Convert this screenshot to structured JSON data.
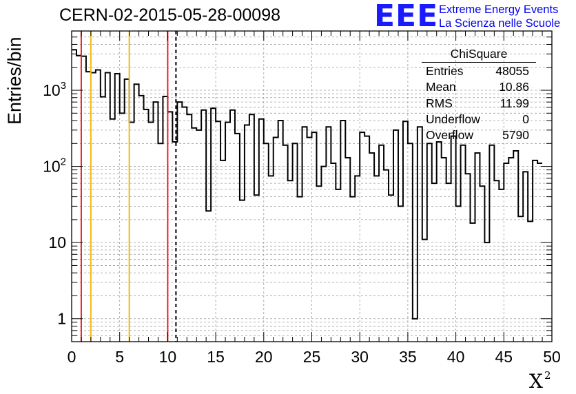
{
  "header": {
    "title": "CERN-02-2015-05-28-00098",
    "logo_mark": "EEE",
    "logo_line1": "Extreme Energy Events",
    "logo_line2": "La Scienza nelle Scuole"
  },
  "stats": {
    "name": "ChiSquare",
    "rows": [
      {
        "label": "Entries",
        "value": "48055"
      },
      {
        "label": "Mean",
        "value": "10.86"
      },
      {
        "label": "RMS",
        "value": "11.99"
      },
      {
        "label": "Underflow",
        "value": "0"
      },
      {
        "label": "Overflow",
        "value": "5790"
      }
    ]
  },
  "chart_data": {
    "type": "histogram",
    "title": "CERN-02-2015-05-28-00098",
    "xlabel": "X",
    "xlabel_superscript": "2",
    "ylabel": "Entries/bin",
    "xlim": [
      0,
      50
    ],
    "ylim": [
      0.5,
      6000
    ],
    "yscale": "log",
    "bin_width": 0.5,
    "grid": true,
    "x_ticks": [
      0,
      5,
      10,
      15,
      20,
      25,
      30,
      35,
      40,
      45,
      50
    ],
    "x_tick_labels": [
      "0",
      "5",
      "10",
      "15",
      "20",
      "25",
      "30",
      "35",
      "40",
      "45",
      "50"
    ],
    "y_ticks": [
      1,
      10,
      100,
      1000
    ],
    "y_tick_labels": [
      "1",
      "10",
      "10²",
      "10³"
    ],
    "values": [
      3400,
      2850,
      2800,
      1750,
      1700,
      1850,
      820,
      1700,
      420,
      1650,
      500,
      1400,
      380,
      1200,
      850,
      560,
      380,
      700,
      200,
      830,
      520,
      210,
      700,
      600,
      480,
      320,
      300,
      550,
      26,
      580,
      390,
      120,
      380,
      550,
      270,
      36,
      350,
      480,
      42,
      420,
      200,
      75,
      240,
      400,
      190,
      65,
      200,
      40,
      330,
      240,
      280,
      55,
      100,
      330,
      110,
      50,
      400,
      130,
      40,
      75,
      280,
      250,
      150,
      75,
      190,
      90,
      42,
      300,
      30,
      390,
      200,
      1,
      330,
      11,
      200,
      60,
      210,
      130,
      60,
      250,
      30,
      190,
      80,
      18,
      150,
      55,
      10,
      190,
      65,
      50,
      110,
      130,
      160,
      22,
      85,
      19,
      120,
      110
    ],
    "vlines": [
      {
        "x": 1,
        "color": "#e8221e",
        "style": "solid"
      },
      {
        "x": 2,
        "color": "#f2b90f",
        "style": "solid"
      },
      {
        "x": 6,
        "color": "#f2b90f",
        "style": "solid"
      },
      {
        "x": 10,
        "color": "#e8221e",
        "style": "solid"
      },
      {
        "x": 10.86,
        "color": "#000000",
        "style": "dashed"
      }
    ]
  }
}
